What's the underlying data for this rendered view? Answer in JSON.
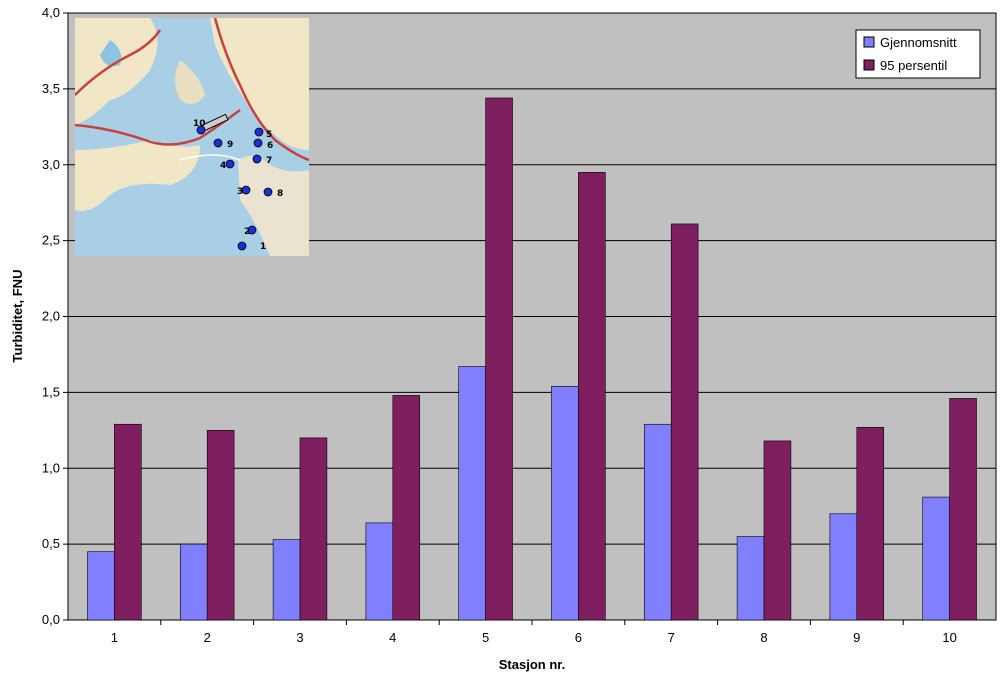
{
  "chart_data": {
    "type": "bar",
    "categories": [
      "1",
      "2",
      "3",
      "4",
      "5",
      "6",
      "7",
      "8",
      "9",
      "10"
    ],
    "series": [
      {
        "name": "Gjennomsnitt",
        "color": "#8080ff",
        "values": [
          0.45,
          0.5,
          0.53,
          0.64,
          1.67,
          1.54,
          1.29,
          0.55,
          0.7,
          0.81
        ]
      },
      {
        "name": "95 persentil",
        "color": "#7f1f5f",
        "values": [
          1.29,
          1.25,
          1.2,
          1.48,
          3.44,
          2.95,
          2.61,
          1.18,
          1.27,
          1.46
        ]
      }
    ],
    "xlabel": "Stasjon nr.",
    "ylabel": "Turbiditet, FNU",
    "ylim": [
      0,
      4
    ],
    "yticks": [
      "0,0",
      "0,5",
      "1,0",
      "1,5",
      "2,0",
      "2,5",
      "3,0",
      "3,5",
      "4,0"
    ],
    "grid": true,
    "plot_background": "#c0c0c0",
    "legend_position": "top-right"
  },
  "inset_map": {
    "description_icon": "station-map",
    "stations": [
      "1",
      "2",
      "3",
      "4",
      "5",
      "6",
      "7",
      "8",
      "9",
      "10"
    ]
  }
}
